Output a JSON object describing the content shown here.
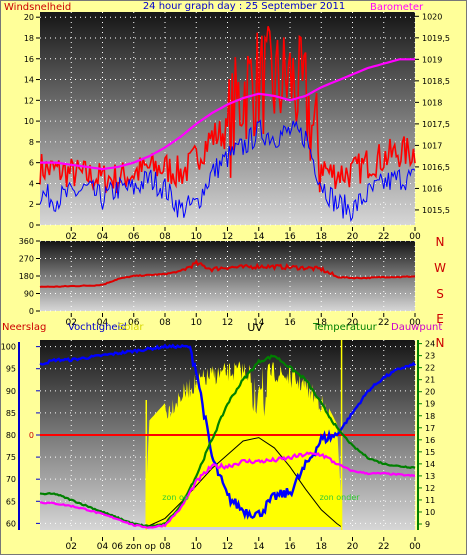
{
  "chart_data": [
    {
      "type": "line",
      "title": "24 hour graph day : 25 September 2011",
      "left_axis_title": "Windsnelheid",
      "right_axis_title": "Barometer",
      "x": {
        "ticks": [
          "02",
          "04",
          "06",
          "08",
          "10",
          "12",
          "14",
          "16",
          "18",
          "20",
          "22",
          "00"
        ],
        "range_hours": [
          0,
          24
        ]
      },
      "y_left": {
        "ticks": [
          "0",
          "2",
          "4",
          "6",
          "8",
          "10",
          "12",
          "14",
          "16",
          "18",
          "20"
        ],
        "range": [
          0,
          20.5
        ]
      },
      "y_right": {
        "ticks": [
          "1015,5",
          "1016",
          "1016,5",
          "1017",
          "1017,5",
          "1018",
          "1018,5",
          "1019",
          "1019,5",
          "1020"
        ],
        "range": [
          1015.15,
          1020.1
        ]
      },
      "series": [
        {
          "name": "",
          "color": "#ff0000",
          "hours": [
            0,
            2,
            4,
            5,
            6,
            7,
            8,
            9,
            9.5,
            10,
            11,
            12,
            12.5,
            13,
            14,
            15,
            16,
            17,
            18,
            18.5,
            19,
            20,
            21,
            22,
            23,
            24
          ],
          "values": [
            5.5,
            5,
            4.5,
            4.5,
            5,
            5.5,
            5.5,
            5,
            5.5,
            6.5,
            8.5,
            9,
            11,
            13,
            14,
            13.5,
            14,
            12,
            6,
            5,
            5,
            5,
            6,
            6.5,
            7,
            7
          ]
        },
        {
          "name": "",
          "color": "#0000ff",
          "hours": [
            0,
            1,
            2,
            3,
            4,
            5,
            6,
            7,
            8,
            9,
            10,
            11,
            12,
            13,
            14,
            15,
            16,
            17,
            18,
            19,
            20,
            21,
            22,
            23,
            24
          ],
          "values": [
            3,
            2.5,
            3,
            3.5,
            2.5,
            3.5,
            3.5,
            4.5,
            3.5,
            1.5,
            2,
            5,
            6.5,
            7.5,
            9,
            8.5,
            9,
            8.5,
            4,
            2,
            1.5,
            3,
            4,
            4.5,
            4.5
          ]
        },
        {
          "name": "",
          "color": "#ff00ff",
          "hours": [
            0,
            1,
            2,
            3,
            4,
            5,
            6,
            7,
            8,
            9,
            10,
            11,
            12,
            13,
            14,
            15,
            16,
            17,
            18,
            19,
            20,
            21,
            22,
            23,
            24
          ],
          "values": [
            1016.6,
            1016.6,
            1016.55,
            1016.5,
            1016.45,
            1016.5,
            1016.6,
            1016.75,
            1016.95,
            1017.2,
            1017.5,
            1017.75,
            1017.95,
            1018.1,
            1018.2,
            1018.15,
            1018.05,
            1018.15,
            1018.35,
            1018.5,
            1018.65,
            1018.8,
            1018.9,
            1019,
            1019
          ]
        }
      ]
    },
    {
      "type": "line",
      "x": {
        "ticks": [
          "02",
          "04",
          "06",
          "08",
          "10",
          "12",
          "14",
          "16",
          "18",
          "20",
          "22",
          "00"
        ],
        "range_hours": [
          0,
          24
        ]
      },
      "y_left": {
        "ticks": [
          "0",
          "90",
          "180",
          "270",
          "360"
        ],
        "range": [
          0,
          360
        ]
      },
      "y_right": {
        "ticks": [
          "N",
          "W",
          "S",
          "E",
          "N"
        ]
      },
      "series": [
        {
          "name": "",
          "color": "#dd0000",
          "hours": [
            0,
            1,
            2,
            3,
            4,
            5,
            6,
            7,
            8,
            9,
            10,
            11,
            12,
            13,
            14,
            15,
            16,
            17,
            18,
            19,
            20,
            21,
            22,
            23,
            24
          ],
          "values": [
            125,
            125,
            128,
            130,
            135,
            165,
            180,
            185,
            190,
            205,
            245,
            215,
            225,
            225,
            230,
            228,
            225,
            222,
            215,
            175,
            170,
            170,
            175,
            175,
            178
          ]
        }
      ]
    },
    {
      "type": "line",
      "legend": [
        "Neerslag",
        "Vochtigheid",
        "Solar",
        "UV",
        "Temperatuur",
        "Dauwpunt"
      ],
      "x": {
        "ticks": [
          "02",
          "04",
          "06 zon op",
          "08",
          "10",
          "12",
          "14",
          "16",
          "18",
          "20",
          "22",
          "00"
        ],
        "range_hours": [
          0,
          24
        ]
      },
      "y_left": {
        "ticks": [
          "60",
          "65",
          "70",
          "75",
          "80",
          "85",
          "90",
          "95",
          "100"
        ],
        "range": [
          58.5,
          101.5
        ]
      },
      "y_left_rain": {
        "ticks": [
          "0"
        ]
      },
      "y_right": {
        "ticks": [
          "9",
          "10",
          "11",
          "12",
          "13",
          "14",
          "15",
          "16",
          "17",
          "18",
          "19",
          "20",
          "21",
          "22",
          "23",
          "24"
        ],
        "range": [
          8.5,
          24.3
        ]
      },
      "annotations": [
        "zon op",
        "zon onder"
      ],
      "series": [
        {
          "name": "Vochtigheid",
          "color": "#0000ff",
          "hours": [
            0,
            1,
            2,
            3,
            4,
            5,
            6,
            7,
            8,
            9,
            9.5,
            10,
            11,
            12,
            13,
            14,
            15,
            16,
            17,
            18,
            19,
            20,
            21,
            22,
            23,
            24
          ],
          "values": [
            96,
            97,
            97,
            97.5,
            98,
            98.5,
            99,
            99.5,
            100,
            100,
            100,
            95,
            75,
            66,
            63,
            62,
            66,
            67,
            73,
            79,
            80,
            85,
            90,
            93,
            95,
            96
          ]
        },
        {
          "name": "Temperatuur",
          "color": "#008000",
          "hours": [
            0,
            1,
            2,
            3,
            4,
            5,
            6,
            7,
            8,
            9,
            10,
            11,
            12,
            13,
            14,
            15,
            16,
            17,
            18,
            19,
            20,
            21,
            22,
            23,
            24
          ],
          "values": [
            11.5,
            11.5,
            11,
            10.5,
            10,
            9.5,
            9,
            8.8,
            9,
            10.5,
            13,
            16,
            19,
            21,
            22.5,
            23,
            22,
            21,
            19,
            17,
            15.5,
            14.5,
            14,
            13.8,
            13.7
          ]
        },
        {
          "name": "Dauwpunt",
          "color": "#ff00ff",
          "hours": [
            0,
            1,
            2,
            3,
            4,
            5,
            6,
            7,
            8,
            9,
            10,
            11,
            12,
            13,
            14,
            15,
            16,
            17,
            18,
            19,
            20,
            21,
            22,
            23,
            24
          ],
          "values": [
            10.8,
            10.7,
            10.5,
            10.2,
            9.8,
            9.4,
            8.9,
            8.7,
            8.9,
            10.3,
            12.5,
            13.8,
            13.8,
            14.2,
            14.2,
            14.3,
            14.5,
            14.8,
            14.8,
            14,
            13.4,
            13.2,
            13.2,
            13.1,
            13
          ]
        },
        {
          "name": "Solar",
          "color": "#ffff00",
          "hours": [
            6.8,
            7,
            8,
            9,
            10,
            11,
            12,
            13,
            14,
            15,
            16,
            17,
            18,
            19,
            19.3
          ],
          "values": [
            0.2,
            0.62,
            0.72,
            0.82,
            0.9,
            0.94,
            0.96,
            0.97,
            0.95,
            0.96,
            0.93,
            0.88,
            0.78,
            0.6,
            0.1
          ]
        },
        {
          "name": "UV",
          "color": "#000000",
          "hours": [
            6.8,
            8,
            9,
            10,
            11,
            12,
            13,
            14,
            15,
            16,
            17,
            18,
            19,
            19.3
          ],
          "values": [
            0,
            0.05,
            0.14,
            0.24,
            0.34,
            0.42,
            0.5,
            0.52,
            0.46,
            0.35,
            0.22,
            0.1,
            0.02,
            0
          ]
        }
      ],
      "rain": {
        "name": "Neerslag",
        "color": "#ff0000",
        "value": 0
      }
    }
  ],
  "colors": {
    "background": "#ffff99",
    "frame": "#777777"
  }
}
